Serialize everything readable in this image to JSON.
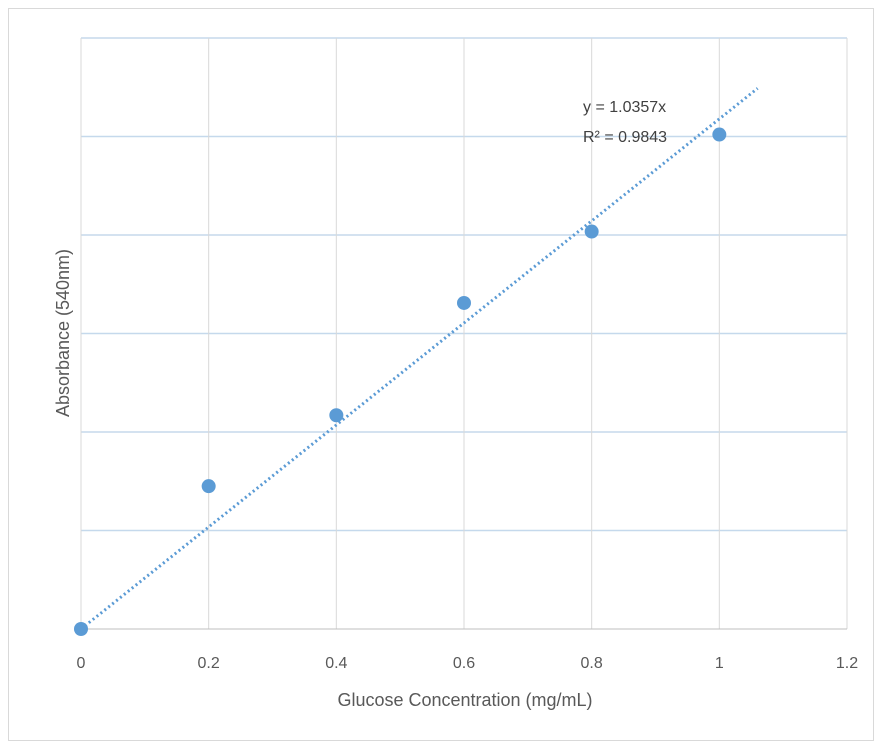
{
  "chart_data": {
    "type": "scatter",
    "title": "",
    "xlabel": "Glucose Concentration (mg/mL)",
    "ylabel": "Absorbance (540nm)",
    "xlim": [
      0,
      1.2
    ],
    "ylim": [
      0,
      1.2
    ],
    "x_ticks": [
      "0",
      "0.2",
      "0.4",
      "0.6",
      "0.8",
      "1",
      "1.2"
    ],
    "y_ticks": [
      0,
      0.2,
      0.4,
      0.6,
      0.8,
      1.0,
      1.2
    ],
    "y_tick_labels_visible": false,
    "grid": "horizontal",
    "marker_color": "#5b9bd5",
    "gridline_color": "#c5d9ec",
    "series": [
      {
        "x": [
          0,
          0.2,
          0.4,
          0.6,
          0.8,
          1.0
        ],
        "y": [
          0,
          0.29,
          0.434,
          0.662,
          0.807,
          1.004
        ]
      }
    ],
    "trendline": {
      "type": "linear",
      "slope": 1.0357,
      "x_range": [
        0,
        1.0
      ],
      "style": "dotted",
      "equation": "y = 1.0357x",
      "r_squared": "R² = 0.9843"
    }
  }
}
